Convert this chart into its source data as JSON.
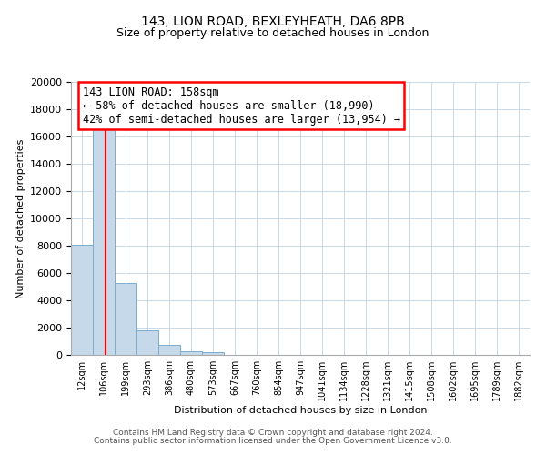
{
  "title1": "143, LION ROAD, BEXLEYHEATH, DA6 8PB",
  "title2": "Size of property relative to detached houses in London",
  "xlabel": "Distribution of detached houses by size in London",
  "ylabel": "Number of detached properties",
  "categories": [
    "12sqm",
    "106sqm",
    "199sqm",
    "293sqm",
    "386sqm",
    "480sqm",
    "573sqm",
    "667sqm",
    "760sqm",
    "854sqm",
    "947sqm",
    "1041sqm",
    "1134sqm",
    "1228sqm",
    "1321sqm",
    "1415sqm",
    "1508sqm",
    "1602sqm",
    "1695sqm",
    "1789sqm",
    "1882sqm"
  ],
  "values": [
    8100,
    16500,
    5300,
    1800,
    750,
    300,
    200,
    0,
    0,
    0,
    0,
    0,
    0,
    0,
    0,
    0,
    0,
    0,
    0,
    0,
    0
  ],
  "bar_color": "#c5d9ea",
  "bar_edge_color": "#7aadcc",
  "vline_color": "red",
  "vline_pos": 1.565,
  "annotation_title": "143 LION ROAD: 158sqm",
  "annotation_line1": "← 58% of detached houses are smaller (18,990)",
  "annotation_line2": "42% of semi-detached houses are larger (13,954) →",
  "box_facecolor": "white",
  "box_edgecolor": "red",
  "ylim": [
    0,
    20000
  ],
  "yticks": [
    0,
    2000,
    4000,
    6000,
    8000,
    10000,
    12000,
    14000,
    16000,
    18000,
    20000
  ],
  "grid_color": "#c8d8e8",
  "footer1": "Contains HM Land Registry data © Crown copyright and database right 2024.",
  "footer2": "Contains public sector information licensed under the Open Government Licence v3.0."
}
